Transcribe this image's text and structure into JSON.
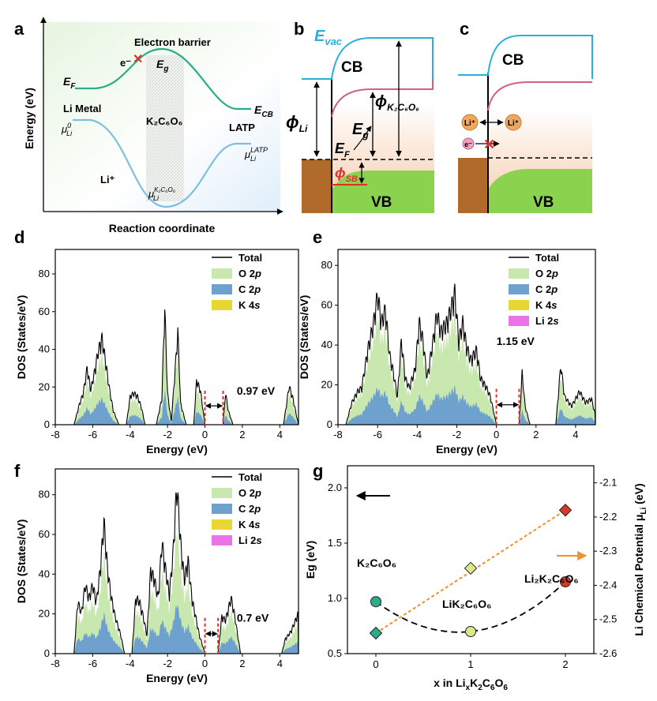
{
  "panel_labels": {
    "a": "a",
    "b": "b",
    "c": "c",
    "d": "d",
    "e": "e",
    "f": "f",
    "g": "g"
  },
  "colors": {
    "total": "#000000",
    "o2p": "#c9e8b0",
    "c2p": "#6fa1cf",
    "k4s": "#e6d733",
    "li2s": "#e874e8",
    "cb": "#2ab0d8",
    "vb": "#8bd24f",
    "metal": "#b06a2a",
    "ef_red": "#e0302a",
    "green_curve": "#2aae8a",
    "blue_curve": "#7fbfe0",
    "orange": "#f09030",
    "pink": "#d06080"
  },
  "panel_a": {
    "ylabel": "Energy (eV)",
    "xlabel": "Reaction coordinate",
    "electron_barrier": "Electron barrier",
    "e_minus": "e⁻",
    "eg": "E",
    "eg_sub": "g",
    "ef": "E",
    "ef_sub": "F",
    "li_metal": "Li Metal",
    "mu": "μ",
    "mu_li0_sup": "0",
    "mu_sub": "Li",
    "k2c6o6": "K₂C₆O₆",
    "ecb": "E",
    "ecb_sub": "CB",
    "latp": "LATP",
    "latp_sup": "LATP",
    "li_plus": "Li⁺",
    "k2c6o6_sup": "K₂C₆O₆"
  },
  "panel_b": {
    "evac": "E",
    "evac_sub": "vac",
    "cb": "CB",
    "vb": "VB",
    "phi": "ϕ",
    "phi_li_sub": "Li",
    "phi_k_sub": "K₂C₆O₆",
    "eg": "E",
    "eg_sub": "g",
    "ef": "E",
    "ef_sub": "F",
    "phi_sb_sub": "SB"
  },
  "panel_c": {
    "cb": "CB",
    "vb": "VB",
    "li_plus": "Li⁺",
    "e_minus": "e⁻",
    "cross": "✕"
  },
  "dos_common": {
    "xlabel": "Energy (eV)",
    "ylabel": "DOS (States/eV)",
    "xticks": [
      "-8",
      "-6",
      "-4",
      "-2",
      "0",
      "2",
      "4"
    ],
    "yticks": [
      "0",
      "20",
      "40",
      "60",
      "80"
    ]
  },
  "chart_data": [
    {
      "panel": "d",
      "type": "area",
      "xlim": [
        -8,
        5
      ],
      "ylim": [
        0,
        93
      ],
      "legend": [
        "Total",
        "O 2p",
        "C 2p",
        "K 4s"
      ],
      "legend_orb": [
        "O 2",
        "C 2",
        "K 4"
      ],
      "legend_sub": [
        "p",
        "p",
        "s"
      ],
      "gap_label": "0.97 eV",
      "gap": [
        0,
        0.97
      ],
      "total_peaks": [
        [
          -7,
          0
        ],
        [
          -6.7,
          12
        ],
        [
          -6.5,
          18
        ],
        [
          -6.3,
          32
        ],
        [
          -6.1,
          20
        ],
        [
          -5.9,
          30
        ],
        [
          -5.7,
          42
        ],
        [
          -5.5,
          49
        ],
        [
          -5.3,
          35
        ],
        [
          -5.1,
          20
        ],
        [
          -4.9,
          8
        ],
        [
          -4.6,
          0
        ],
        [
          -4.2,
          0
        ],
        [
          -4.0,
          16
        ],
        [
          -3.8,
          18
        ],
        [
          -3.6,
          16
        ],
        [
          -3.4,
          10
        ],
        [
          -3.2,
          0
        ],
        [
          -2.6,
          0
        ],
        [
          -2.3,
          15
        ],
        [
          -2.15,
          67
        ],
        [
          -2.0,
          18
        ],
        [
          -1.8,
          2
        ],
        [
          -1.6,
          30
        ],
        [
          -1.45,
          53
        ],
        [
          -1.3,
          12
        ],
        [
          -1.0,
          0
        ],
        [
          -0.6,
          0
        ],
        [
          -0.45,
          25
        ],
        [
          -0.25,
          20
        ],
        [
          0,
          0
        ],
        [
          0.97,
          0
        ],
        [
          1.1,
          18
        ],
        [
          1.25,
          8
        ],
        [
          1.5,
          0
        ],
        [
          4.2,
          0
        ],
        [
          4.5,
          22
        ],
        [
          4.7,
          15
        ],
        [
          5,
          0
        ]
      ],
      "o2p_ratio": 0.5,
      "c2p_ratio": 0.3
    },
    {
      "panel": "e",
      "type": "area",
      "xlim": [
        -8,
        5
      ],
      "ylim": [
        0,
        88
      ],
      "legend": [
        "Total",
        "O 2p",
        "C 2p",
        "K 4s",
        "Li 2s"
      ],
      "legend_orb": [
        "O 2",
        "C 2",
        "K 4",
        "Li 2"
      ],
      "legend_sub": [
        "p",
        "p",
        "s",
        "s"
      ],
      "gap_label": "1.15 eV",
      "gap": [
        0,
        1.15
      ],
      "total_peaks": [
        [
          -7.6,
          0
        ],
        [
          -7.3,
          12
        ],
        [
          -7.0,
          18
        ],
        [
          -6.8,
          20
        ],
        [
          -6.5,
          40
        ],
        [
          -6.2,
          55
        ],
        [
          -6.0,
          70
        ],
        [
          -5.8,
          55
        ],
        [
          -5.6,
          62
        ],
        [
          -5.4,
          38
        ],
        [
          -5.2,
          28
        ],
        [
          -5.0,
          15
        ],
        [
          -4.8,
          45
        ],
        [
          -4.6,
          25
        ],
        [
          -4.4,
          20
        ],
        [
          -4.1,
          30
        ],
        [
          -3.9,
          55
        ],
        [
          -3.7,
          45
        ],
        [
          -3.5,
          25
        ],
        [
          -3.2,
          45
        ],
        [
          -3.0,
          60
        ],
        [
          -2.8,
          50
        ],
        [
          -2.5,
          55
        ],
        [
          -2.3,
          62
        ],
        [
          -2.1,
          71
        ],
        [
          -1.9,
          45
        ],
        [
          -1.7,
          55
        ],
        [
          -1.5,
          42
        ],
        [
          -1.3,
          35
        ],
        [
          -1.0,
          40
        ],
        [
          -0.8,
          25
        ],
        [
          -0.5,
          20
        ],
        [
          -0.3,
          15
        ],
        [
          0,
          0
        ],
        [
          1.15,
          0
        ],
        [
          1.3,
          28
        ],
        [
          1.45,
          10
        ],
        [
          1.7,
          0
        ],
        [
          3.0,
          0
        ],
        [
          3.25,
          32
        ],
        [
          3.45,
          15
        ],
        [
          3.8,
          10
        ],
        [
          4.2,
          18
        ],
        [
          4.5,
          12
        ],
        [
          4.8,
          14
        ],
        [
          5,
          5
        ]
      ],
      "o2p_ratio": 0.55,
      "c2p_ratio": 0.28
    },
    {
      "panel": "f",
      "type": "area",
      "xlim": [
        -8,
        5
      ],
      "ylim": [
        0,
        93
      ],
      "legend": [
        "Total",
        "O 2p",
        "C 2p",
        "K 4s",
        "Li 2s"
      ],
      "legend_orb": [
        "O 2",
        "C 2",
        "K 4",
        "Li 2"
      ],
      "legend_sub": [
        "p",
        "p",
        "s",
        "s"
      ],
      "gap_label": "0.7 eV",
      "gap": [
        0,
        0.7
      ],
      "total_peaks": [
        [
          -7,
          0
        ],
        [
          -6.8,
          28
        ],
        [
          -6.6,
          22
        ],
        [
          -6.4,
          37
        ],
        [
          -6.2,
          30
        ],
        [
          -6.0,
          37
        ],
        [
          -5.8,
          28
        ],
        [
          -5.6,
          45
        ],
        [
          -5.4,
          71
        ],
        [
          -5.2,
          45
        ],
        [
          -5.0,
          30
        ],
        [
          -4.8,
          20
        ],
        [
          -4.5,
          10
        ],
        [
          -4.3,
          0
        ],
        [
          -3.9,
          0
        ],
        [
          -3.7,
          30
        ],
        [
          -3.5,
          28
        ],
        [
          -3.3,
          20
        ],
        [
          -3.1,
          10
        ],
        [
          -2.9,
          45
        ],
        [
          -2.7,
          40
        ],
        [
          -2.5,
          30
        ],
        [
          -2.3,
          60
        ],
        [
          -2.1,
          45
        ],
        [
          -1.9,
          32
        ],
        [
          -1.7,
          55
        ],
        [
          -1.5,
          91
        ],
        [
          -1.3,
          60
        ],
        [
          -1.1,
          40
        ],
        [
          -0.9,
          50
        ],
        [
          -0.7,
          30
        ],
        [
          -0.5,
          20
        ],
        [
          -0.3,
          10
        ],
        [
          0,
          0
        ],
        [
          0.7,
          0
        ],
        [
          0.9,
          20
        ],
        [
          1.1,
          18
        ],
        [
          1.4,
          30
        ],
        [
          1.6,
          20
        ],
        [
          1.9,
          0
        ],
        [
          4.1,
          0
        ],
        [
          4.3,
          8
        ],
        [
          4.6,
          12
        ],
        [
          5,
          22
        ]
      ],
      "o2p_ratio": 0.45,
      "c2p_ratio": 0.3
    },
    {
      "panel": "g",
      "type": "scatter",
      "xlabel": "x in Li",
      "xlabel_sub1": "x",
      "xlabel_mid": "K",
      "xlabel_sub2": "2",
      "xlabel_mid2": "C",
      "xlabel_sub3": "6",
      "xlabel_mid3": "O",
      "xlabel_sub4": "6",
      "ylabel": "Eg (eV)",
      "y2label": "Li Chemical Potential μ",
      "y2label_sub": "Li",
      "y2label_unit": " (eV)",
      "x": [
        0,
        1,
        2
      ],
      "xlim": [
        -0.3,
        2.3
      ],
      "ylim": [
        0.5,
        2.2
      ],
      "y2lim": [
        -2.6,
        -2.05
      ],
      "xticks": [
        "0",
        "1",
        "2"
      ],
      "yticks": [
        "0.5",
        "1.0",
        "1.5",
        "2.0"
      ],
      "y2ticks": [
        "-2.6",
        "-2.5",
        "-2.4",
        "-2.3",
        "-2.2",
        "-2.1"
      ],
      "series": [
        {
          "name": "Eg",
          "values": [
            0.97,
            0.7,
            1.15
          ],
          "axis": "left",
          "marker": "circle"
        },
        {
          "name": "μLi",
          "values": [
            -2.54,
            -2.35,
            -2.18
          ],
          "axis": "right",
          "marker": "diamond"
        }
      ],
      "marker_colors": [
        "#2aae8a",
        "#dde88a",
        "#d83a2a"
      ],
      "labels": {
        "k2c6o6": "K₂C₆O₆",
        "lik2c6o6": "LiK₂C₆O₆",
        "li2k2c6o6": "Li₂K₂C₆O₆"
      }
    }
  ]
}
